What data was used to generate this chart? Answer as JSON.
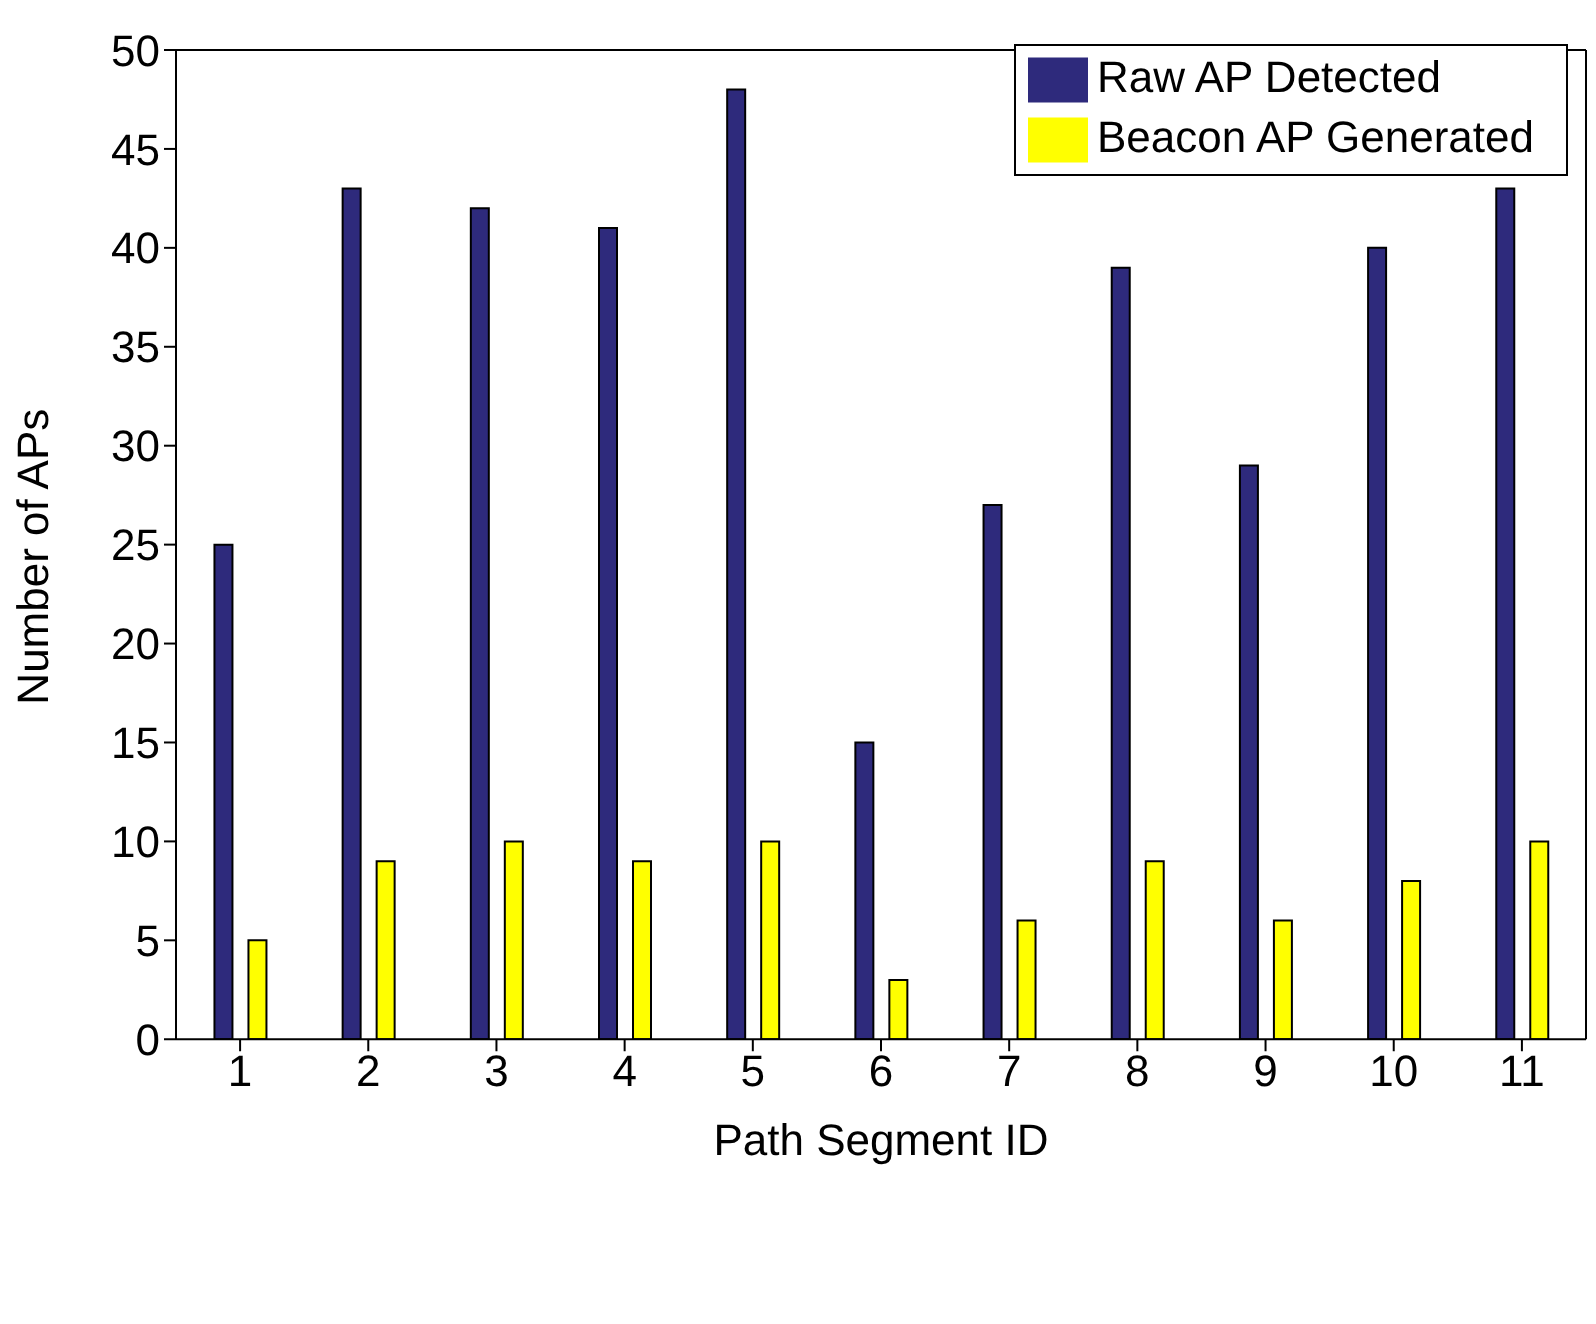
{
  "chart_data": {
    "type": "bar",
    "xlabel": "Path Segment ID",
    "ylabel": "Number of APs",
    "categories": [
      "1",
      "2",
      "3",
      "4",
      "5",
      "6",
      "7",
      "8",
      "9",
      "10",
      "11"
    ],
    "series": [
      {
        "name": "Raw AP Detected",
        "color": "#2e2a7c",
        "values": [
          25,
          43,
          42,
          41,
          48,
          15,
          27,
          39,
          29,
          40,
          43
        ]
      },
      {
        "name": "Beacon AP Generated",
        "color": "#ffff00",
        "values": [
          5,
          9,
          10,
          9,
          10,
          3,
          6,
          9,
          6,
          8,
          10
        ]
      }
    ],
    "ylim": [
      0,
      50
    ],
    "yticks": [
      0,
      5,
      10,
      15,
      20,
      25,
      30,
      35,
      40,
      45,
      50
    ],
    "grid": false,
    "legend": "top right"
  }
}
